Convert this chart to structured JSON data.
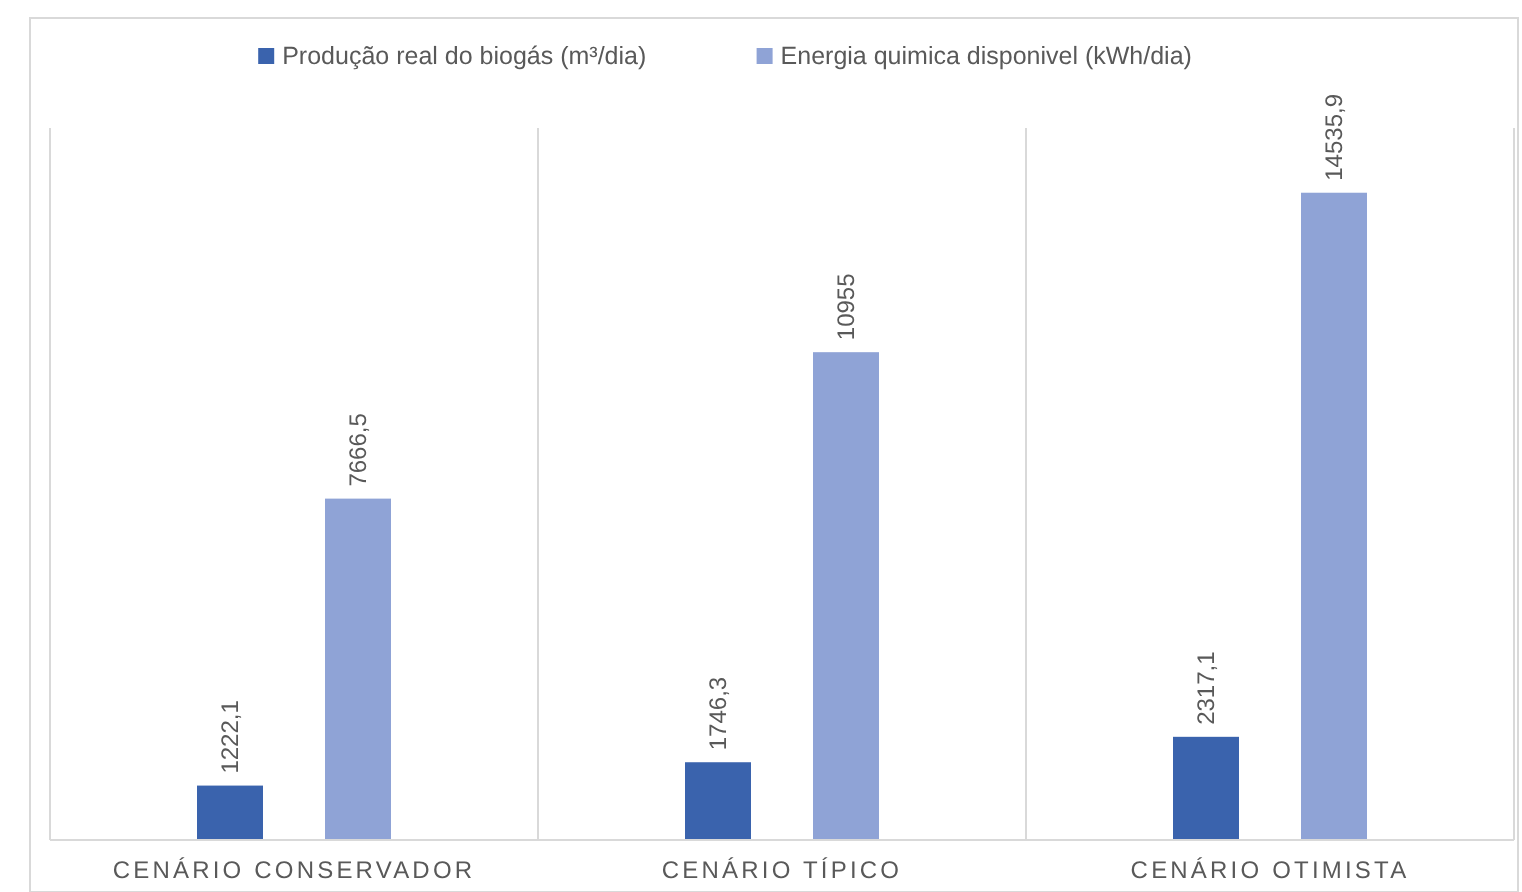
{
  "chart_data": {
    "type": "bar",
    "categories": [
      "CENÁRIO CONSERVADOR",
      "CENÁRIO TÍPICO",
      "CENÁRIO OTIMISTA"
    ],
    "series": [
      {
        "name": "Produção real do biogás (m³/dia)",
        "color": "#3a63ad",
        "values": [
          1222.1,
          1746.3,
          2317.1
        ],
        "value_labels": [
          "1222,1",
          "1746,3",
          "2317,1"
        ]
      },
      {
        "name": "Energia quimica disponivel (kWh/dia)",
        "color": "#8fa3d6",
        "values": [
          7666.5,
          10955,
          14535.9
        ],
        "value_labels": [
          "7666,5",
          "10955",
          "14535,9"
        ]
      }
    ],
    "grid": "x",
    "legend": "top"
  }
}
